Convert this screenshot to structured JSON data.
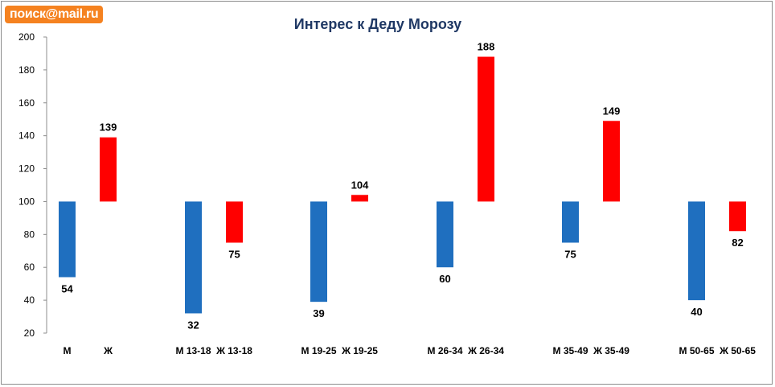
{
  "logo": {
    "text": "поиск@mail.ru"
  },
  "chart_data": {
    "type": "bar",
    "title": "Интерес к Деду Морозу",
    "xlabel": "",
    "ylabel": "",
    "ylim": [
      20,
      200
    ],
    "yticks": [
      20,
      40,
      60,
      80,
      100,
      120,
      140,
      160,
      180,
      200
    ],
    "baseline": 100,
    "grid": false,
    "categories": [
      "М",
      "Ж",
      "М 13-18",
      "Ж 13-18",
      "М 19-25",
      "Ж 19-25",
      "М 26-34",
      "Ж 26-34",
      "М 35-49",
      "Ж 35-49",
      "М 50-65",
      "Ж 50-65"
    ],
    "values": [
      54,
      139,
      32,
      75,
      39,
      104,
      60,
      188,
      75,
      149,
      40,
      82
    ],
    "bar_colors": [
      "#1f6fbf",
      "#ff0000",
      "#1f6fbf",
      "#ff0000",
      "#1f6fbf",
      "#ff0000",
      "#1f6fbf",
      "#ff0000",
      "#1f6fbf",
      "#ff0000",
      "#1f6fbf",
      "#ff0000"
    ]
  }
}
